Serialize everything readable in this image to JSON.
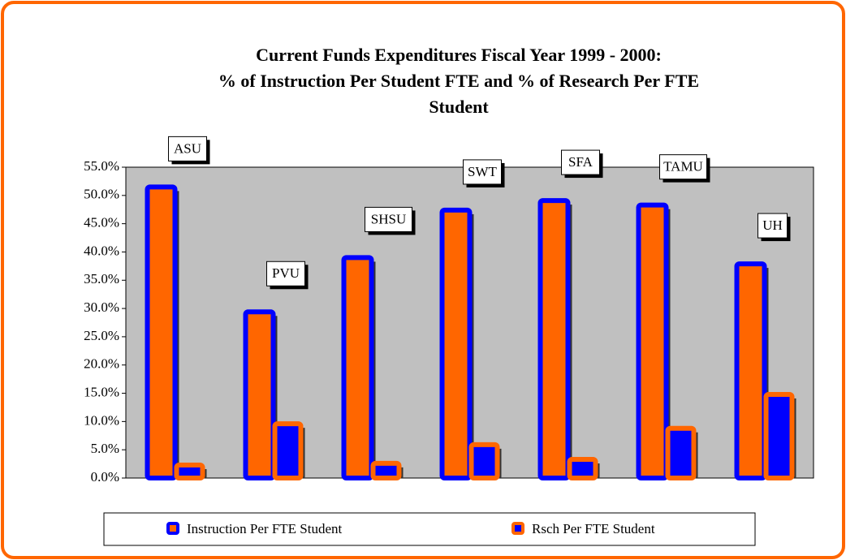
{
  "chart_data": {
    "type": "bar",
    "title": [
      "Current Funds Expenditures Fiscal Year 1999 - 2000:",
      "% of Instruction Per Student FTE and % of Research Per FTE",
      "Student"
    ],
    "categories": [
      "ASU",
      "PVU",
      "SHSU",
      "SWT",
      "SFA",
      "TAMU",
      "UH"
    ],
    "series": [
      {
        "name": "Instruction Per FTE Student",
        "color": "#ff6600",
        "edge_color": "#0000ff",
        "values": [
          51.5,
          29.4,
          39.0,
          47.4,
          49.1,
          48.3,
          37.9
        ]
      },
      {
        "name": "Rsch Per FTE Student",
        "color": "#0000ff",
        "edge_color": "#ff6600",
        "values": [
          2.3,
          9.6,
          2.6,
          5.9,
          3.3,
          8.8,
          14.8
        ]
      }
    ],
    "ylim": [
      0,
      55
    ],
    "yticks": [
      {
        "value": 0,
        "label": "0.0%"
      },
      {
        "value": 5,
        "label": "5.0%"
      },
      {
        "value": 10,
        "label": "10.0%"
      },
      {
        "value": 15,
        "label": "15.0%"
      },
      {
        "value": 20,
        "label": "20.0%"
      },
      {
        "value": 25,
        "label": "25.0%"
      },
      {
        "value": 30,
        "label": "30.0%"
      },
      {
        "value": 35,
        "label": "35.0%"
      },
      {
        "value": 40,
        "label": "40.0%"
      },
      {
        "value": 45,
        "label": "45.0%"
      },
      {
        "value": 50,
        "label": "50.0%"
      },
      {
        "value": 55,
        "label": "55.0%"
      }
    ],
    "grid": false,
    "legend": "bottom"
  }
}
